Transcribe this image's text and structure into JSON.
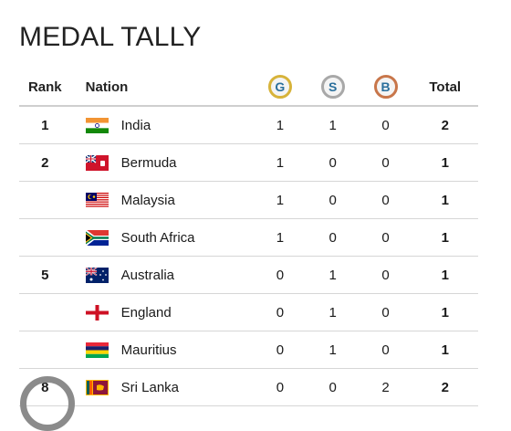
{
  "title": "MEDAL TALLY",
  "headers": {
    "rank": "Rank",
    "nation": "Nation",
    "gold": "G",
    "silver": "S",
    "bronze": "B",
    "total": "Total"
  },
  "rows": [
    {
      "rank": "1",
      "nation": "India",
      "gold": "1",
      "silver": "1",
      "bronze": "0",
      "total": "2"
    },
    {
      "rank": "2",
      "nation": "Bermuda",
      "gold": "1",
      "silver": "0",
      "bronze": "0",
      "total": "1"
    },
    {
      "rank": "",
      "nation": "Malaysia",
      "gold": "1",
      "silver": "0",
      "bronze": "0",
      "total": "1"
    },
    {
      "rank": "",
      "nation": "South Africa",
      "gold": "1",
      "silver": "0",
      "bronze": "0",
      "total": "1"
    },
    {
      "rank": "5",
      "nation": "Australia",
      "gold": "0",
      "silver": "1",
      "bronze": "0",
      "total": "1"
    },
    {
      "rank": "",
      "nation": "England",
      "gold": "0",
      "silver": "1",
      "bronze": "0",
      "total": "1"
    },
    {
      "rank": "",
      "nation": "Mauritius",
      "gold": "0",
      "silver": "1",
      "bronze": "0",
      "total": "1"
    },
    {
      "rank": "8",
      "nation": "Sri Lanka",
      "gold": "0",
      "silver": "0",
      "bronze": "2",
      "total": "2"
    }
  ],
  "colors": {
    "gold": "#d7b33a",
    "silver": "#a8a8a8",
    "bronze": "#c8764a",
    "medal_letter": "#2a6f9c"
  }
}
